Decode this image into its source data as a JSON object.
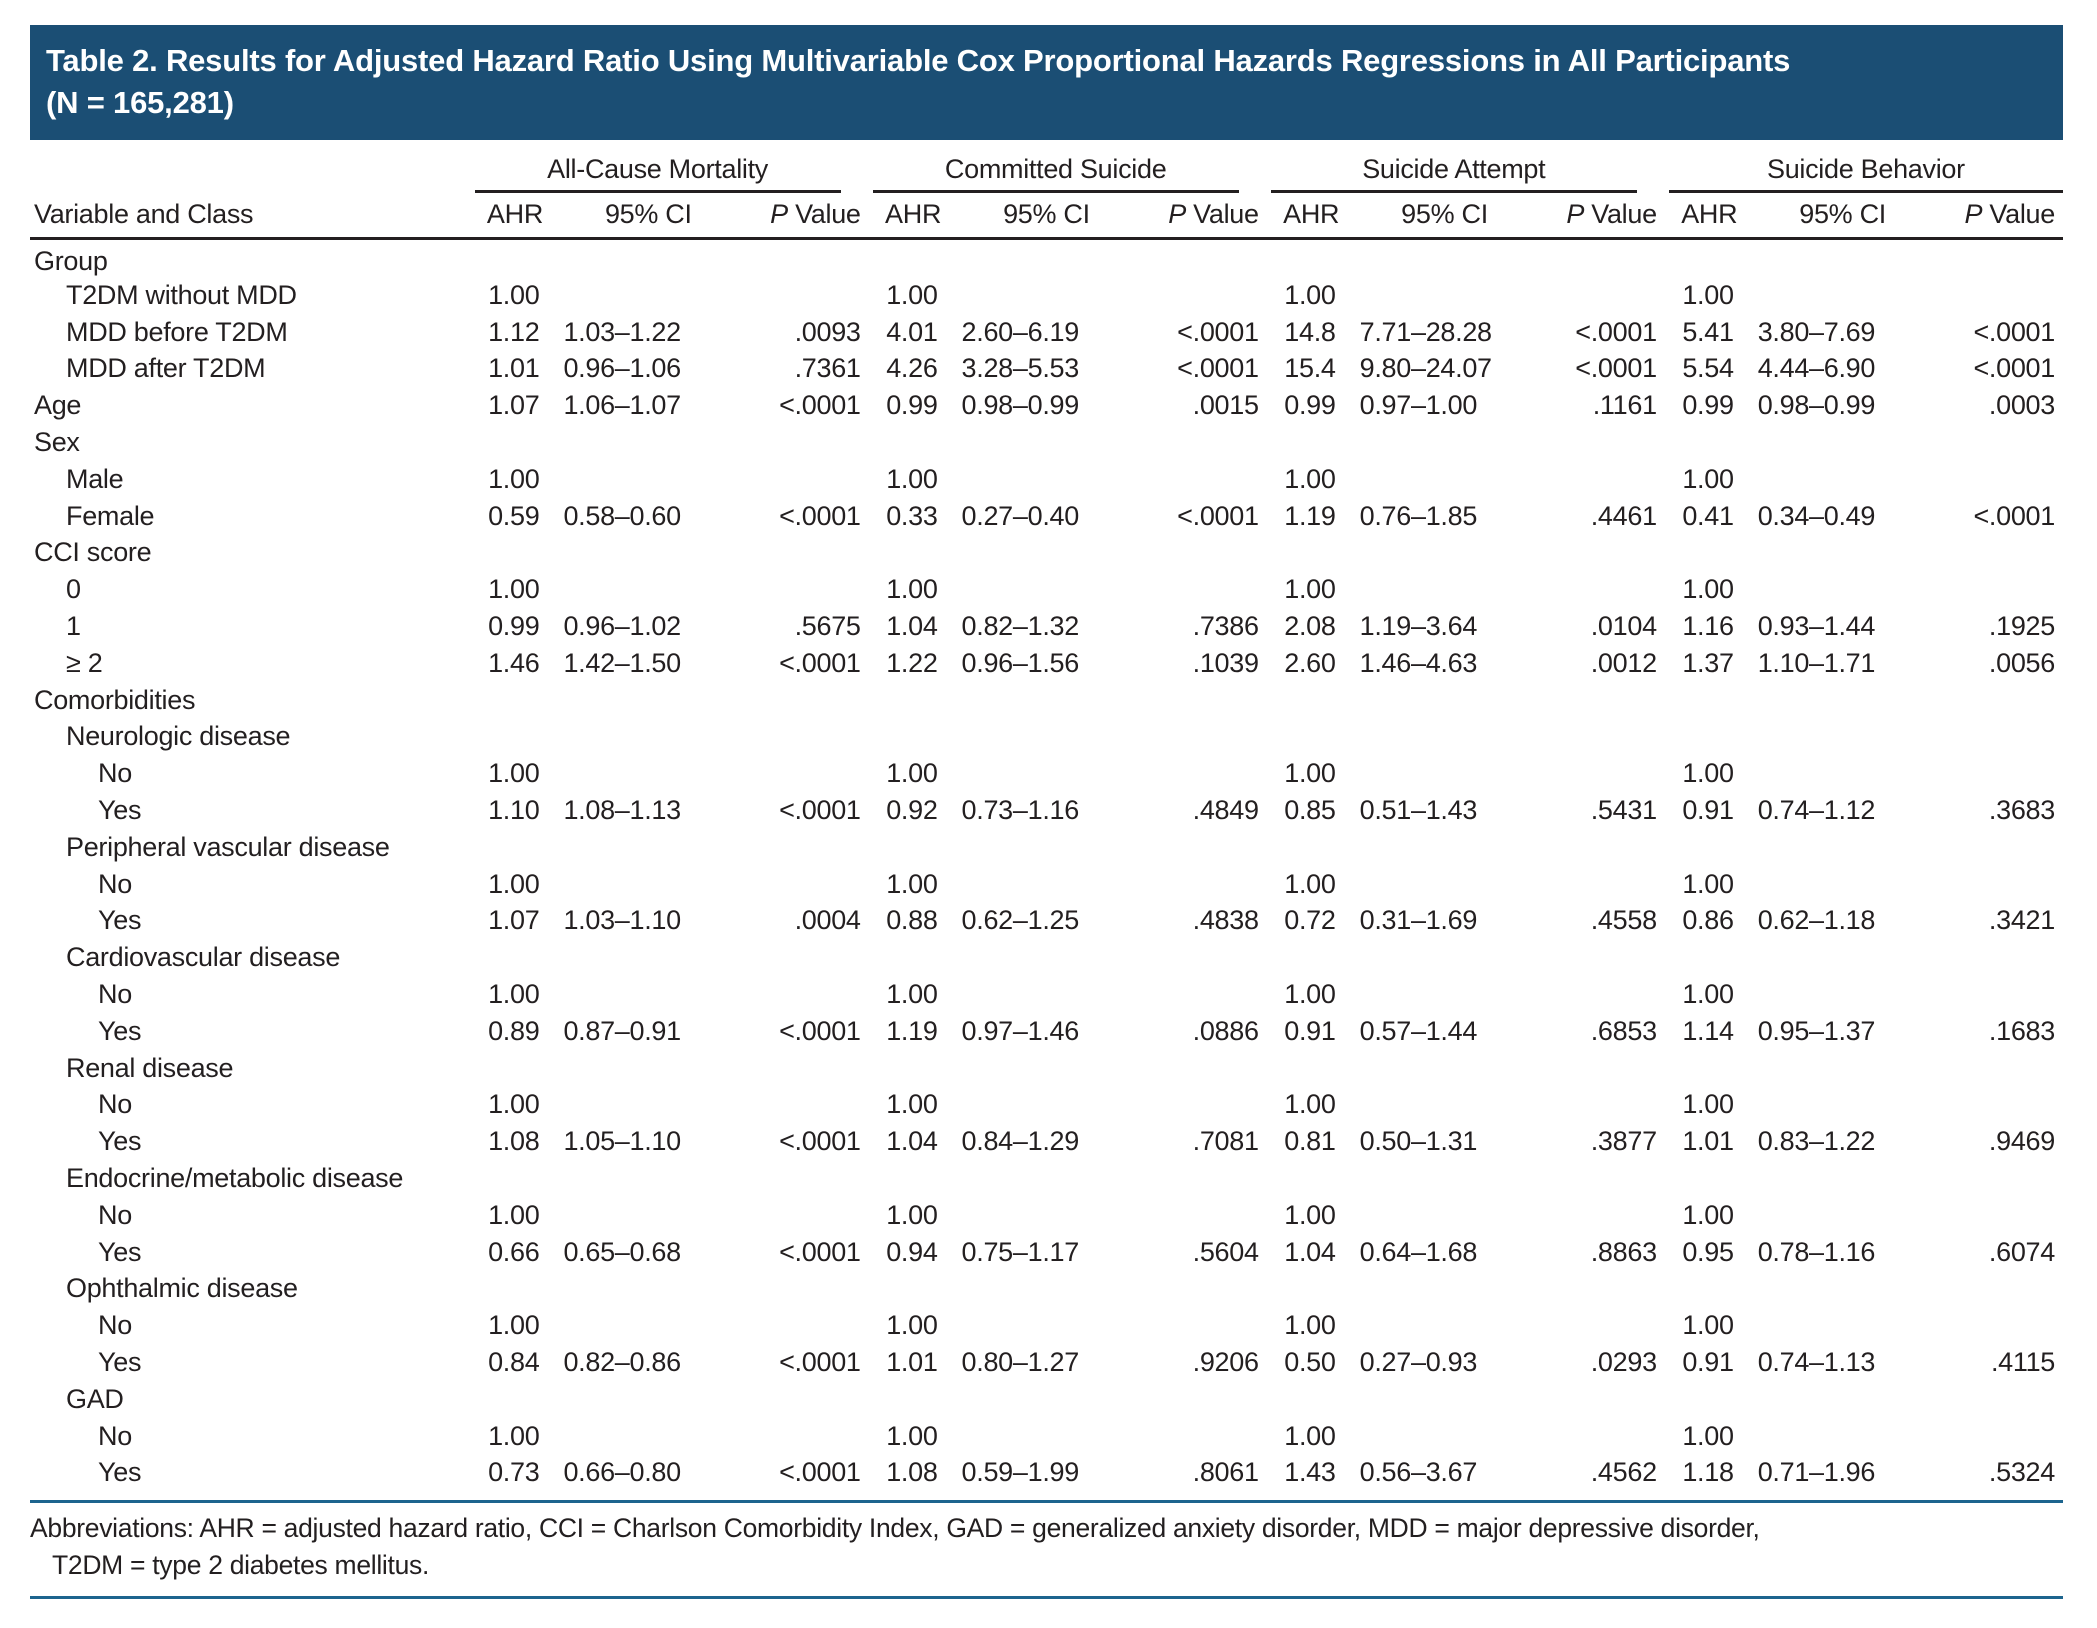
{
  "colors": {
    "title_bar_bg": "#1b4e74",
    "rule_blue": "#1d648e",
    "text_ink": "#231f20"
  },
  "title": {
    "line1": "Table 2. Results for Adjusted Hazard Ratio Using Multivariable Cox Proportional Hazards Regressions in All Participants",
    "line2": "(N = 165,281)"
  },
  "table": {
    "first_col_header": "Variable and Class",
    "groups": [
      {
        "label": "All-Cause Mortality"
      },
      {
        "label": "Committed Suicide"
      },
      {
        "label": "Suicide Attempt"
      },
      {
        "label": "Suicide Behavior"
      }
    ],
    "subheaders": {
      "ahr": "AHR",
      "ci": "95% CI",
      "p_italic": "P",
      "p_rest": " Value"
    },
    "rows": [
      {
        "label": "Group",
        "indent": 0,
        "cells": null
      },
      {
        "label": "T2DM without MDD",
        "indent": 1,
        "cells": [
          [
            "1.00",
            "",
            ""
          ],
          [
            "1.00",
            "",
            ""
          ],
          [
            "1.00",
            "",
            ""
          ],
          [
            "1.00",
            "",
            ""
          ]
        ]
      },
      {
        "label": "MDD before T2DM",
        "indent": 1,
        "cells": [
          [
            "1.12",
            "1.03–1.22",
            ".0093"
          ],
          [
            "4.01",
            "2.60–6.19",
            "<.0001"
          ],
          [
            "14.8",
            "7.71–28.28",
            "<.0001"
          ],
          [
            "5.41",
            "3.80–7.69",
            "<.0001"
          ]
        ]
      },
      {
        "label": "MDD after T2DM",
        "indent": 1,
        "cells": [
          [
            "1.01",
            "0.96–1.06",
            ".7361"
          ],
          [
            "4.26",
            "3.28–5.53",
            "<.0001"
          ],
          [
            "15.4",
            "9.80–24.07",
            "<.0001"
          ],
          [
            "5.54",
            "4.44–6.90",
            "<.0001"
          ]
        ]
      },
      {
        "label": "Age",
        "indent": 0,
        "cells": [
          [
            "1.07",
            "1.06–1.07",
            "<.0001"
          ],
          [
            "0.99",
            "0.98–0.99",
            ".0015"
          ],
          [
            "0.99",
            "0.97–1.00",
            ".1161"
          ],
          [
            "0.99",
            "0.98–0.99",
            ".0003"
          ]
        ]
      },
      {
        "label": "Sex",
        "indent": 0,
        "cells": null
      },
      {
        "label": "Male",
        "indent": 1,
        "cells": [
          [
            "1.00",
            "",
            ""
          ],
          [
            "1.00",
            "",
            ""
          ],
          [
            "1.00",
            "",
            ""
          ],
          [
            "1.00",
            "",
            ""
          ]
        ]
      },
      {
        "label": "Female",
        "indent": 1,
        "cells": [
          [
            "0.59",
            "0.58–0.60",
            "<.0001"
          ],
          [
            "0.33",
            "0.27–0.40",
            "<.0001"
          ],
          [
            "1.19",
            "0.76–1.85",
            ".4461"
          ],
          [
            "0.41",
            "0.34–0.49",
            "<.0001"
          ]
        ]
      },
      {
        "label": "CCI score",
        "indent": 0,
        "cells": null
      },
      {
        "label": "0",
        "indent": 1,
        "cells": [
          [
            "1.00",
            "",
            ""
          ],
          [
            "1.00",
            "",
            ""
          ],
          [
            "1.00",
            "",
            ""
          ],
          [
            "1.00",
            "",
            ""
          ]
        ]
      },
      {
        "label": "1",
        "indent": 1,
        "cells": [
          [
            "0.99",
            "0.96–1.02",
            ".5675"
          ],
          [
            "1.04",
            "0.82–1.32",
            ".7386"
          ],
          [
            "2.08",
            "1.19–3.64",
            ".0104"
          ],
          [
            "1.16",
            "0.93–1.44",
            ".1925"
          ]
        ]
      },
      {
        "label": "≥ 2",
        "indent": 1,
        "cells": [
          [
            "1.46",
            "1.42–1.50",
            "<.0001"
          ],
          [
            "1.22",
            "0.96–1.56",
            ".1039"
          ],
          [
            "2.60",
            "1.46–4.63",
            ".0012"
          ],
          [
            "1.37",
            "1.10–1.71",
            ".0056"
          ]
        ]
      },
      {
        "label": "Comorbidities",
        "indent": 0,
        "cells": null
      },
      {
        "label": "Neurologic disease",
        "indent": 1,
        "cells": null
      },
      {
        "label": "No",
        "indent": 2,
        "cells": [
          [
            "1.00",
            "",
            ""
          ],
          [
            "1.00",
            "",
            ""
          ],
          [
            "1.00",
            "",
            ""
          ],
          [
            "1.00",
            "",
            ""
          ]
        ]
      },
      {
        "label": "Yes",
        "indent": 2,
        "cells": [
          [
            "1.10",
            "1.08–1.13",
            "<.0001"
          ],
          [
            "0.92",
            "0.73–1.16",
            ".4849"
          ],
          [
            "0.85",
            "0.51–1.43",
            ".5431"
          ],
          [
            "0.91",
            "0.74–1.12",
            ".3683"
          ]
        ]
      },
      {
        "label": "Peripheral vascular disease",
        "indent": 1,
        "cells": null
      },
      {
        "label": "No",
        "indent": 2,
        "cells": [
          [
            "1.00",
            "",
            ""
          ],
          [
            "1.00",
            "",
            ""
          ],
          [
            "1.00",
            "",
            ""
          ],
          [
            "1.00",
            "",
            ""
          ]
        ]
      },
      {
        "label": "Yes",
        "indent": 2,
        "cells": [
          [
            "1.07",
            "1.03–1.10",
            ".0004"
          ],
          [
            "0.88",
            "0.62–1.25",
            ".4838"
          ],
          [
            "0.72",
            "0.31–1.69",
            ".4558"
          ],
          [
            "0.86",
            "0.62–1.18",
            ".3421"
          ]
        ]
      },
      {
        "label": "Cardiovascular disease",
        "indent": 1,
        "cells": null
      },
      {
        "label": "No",
        "indent": 2,
        "cells": [
          [
            "1.00",
            "",
            ""
          ],
          [
            "1.00",
            "",
            ""
          ],
          [
            "1.00",
            "",
            ""
          ],
          [
            "1.00",
            "",
            ""
          ]
        ]
      },
      {
        "label": "Yes",
        "indent": 2,
        "cells": [
          [
            "0.89",
            "0.87–0.91",
            "<.0001"
          ],
          [
            "1.19",
            "0.97–1.46",
            ".0886"
          ],
          [
            "0.91",
            "0.57–1.44",
            ".6853"
          ],
          [
            "1.14",
            "0.95–1.37",
            ".1683"
          ]
        ]
      },
      {
        "label": "Renal disease",
        "indent": 1,
        "cells": null
      },
      {
        "label": "No",
        "indent": 2,
        "cells": [
          [
            "1.00",
            "",
            ""
          ],
          [
            "1.00",
            "",
            ""
          ],
          [
            "1.00",
            "",
            ""
          ],
          [
            "1.00",
            "",
            ""
          ]
        ]
      },
      {
        "label": "Yes",
        "indent": 2,
        "cells": [
          [
            "1.08",
            "1.05–1.10",
            "<.0001"
          ],
          [
            "1.04",
            "0.84–1.29",
            ".7081"
          ],
          [
            "0.81",
            "0.50–1.31",
            ".3877"
          ],
          [
            "1.01",
            "0.83–1.22",
            ".9469"
          ]
        ]
      },
      {
        "label": "Endocrine/metabolic disease",
        "indent": 1,
        "cells": null
      },
      {
        "label": "No",
        "indent": 2,
        "cells": [
          [
            "1.00",
            "",
            ""
          ],
          [
            "1.00",
            "",
            ""
          ],
          [
            "1.00",
            "",
            ""
          ],
          [
            "1.00",
            "",
            ""
          ]
        ]
      },
      {
        "label": "Yes",
        "indent": 2,
        "cells": [
          [
            "0.66",
            "0.65–0.68",
            "<.0001"
          ],
          [
            "0.94",
            "0.75–1.17",
            ".5604"
          ],
          [
            "1.04",
            "0.64–1.68",
            ".8863"
          ],
          [
            "0.95",
            "0.78–1.16",
            ".6074"
          ]
        ]
      },
      {
        "label": "Ophthalmic disease",
        "indent": 1,
        "cells": null
      },
      {
        "label": "No",
        "indent": 2,
        "cells": [
          [
            "1.00",
            "",
            ""
          ],
          [
            "1.00",
            "",
            ""
          ],
          [
            "1.00",
            "",
            ""
          ],
          [
            "1.00",
            "",
            ""
          ]
        ]
      },
      {
        "label": "Yes",
        "indent": 2,
        "cells": [
          [
            "0.84",
            "0.82–0.86",
            "<.0001"
          ],
          [
            "1.01",
            "0.80–1.27",
            ".9206"
          ],
          [
            "0.50",
            "0.27–0.93",
            ".0293"
          ],
          [
            "0.91",
            "0.74–1.13",
            ".4115"
          ]
        ]
      },
      {
        "label": "GAD",
        "indent": 1,
        "cells": null
      },
      {
        "label": "No",
        "indent": 2,
        "cells": [
          [
            "1.00",
            "",
            ""
          ],
          [
            "1.00",
            "",
            ""
          ],
          [
            "1.00",
            "",
            ""
          ],
          [
            "1.00",
            "",
            ""
          ]
        ]
      },
      {
        "label": "Yes",
        "indent": 2,
        "cells": [
          [
            "0.73",
            "0.66–0.80",
            "<.0001"
          ],
          [
            "1.08",
            "0.59–1.99",
            ".8061"
          ],
          [
            "1.43",
            "0.56–3.67",
            ".4562"
          ],
          [
            "1.18",
            "0.71–1.96",
            ".5324"
          ]
        ]
      }
    ]
  },
  "footer": {
    "line1": "Abbreviations: AHR = adjusted hazard ratio, CCI = Charlson Comorbidity Index, GAD = generalized anxiety disorder, MDD = major depressive disorder,",
    "line2": "T2DM = type 2 diabetes mellitus."
  }
}
